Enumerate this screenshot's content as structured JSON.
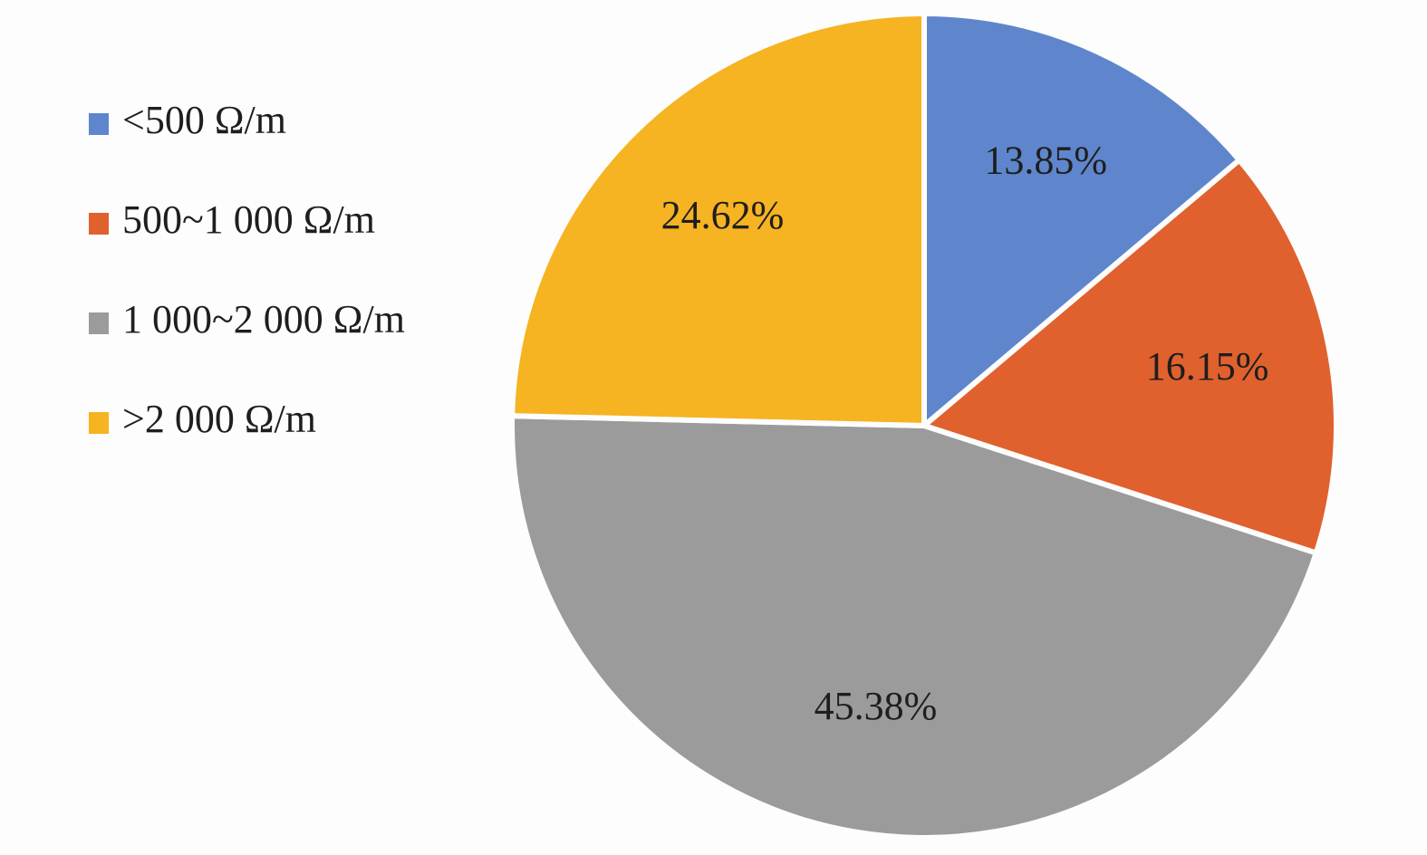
{
  "chart_data": {
    "type": "pie",
    "categories": [
      "<500 Ω/m",
      "500~1 000 Ω/m",
      "1 000~2 000 Ω/m",
      ">2 000 Ω/m"
    ],
    "values": [
      13.85,
      16.15,
      45.38,
      24.62
    ],
    "value_labels": [
      "13.85%",
      "16.15%",
      "45.38%",
      "24.62%"
    ],
    "colors": [
      "#5f86cc",
      "#e0612e",
      "#9b9b9b",
      "#f6b322"
    ],
    "legend": "left"
  }
}
